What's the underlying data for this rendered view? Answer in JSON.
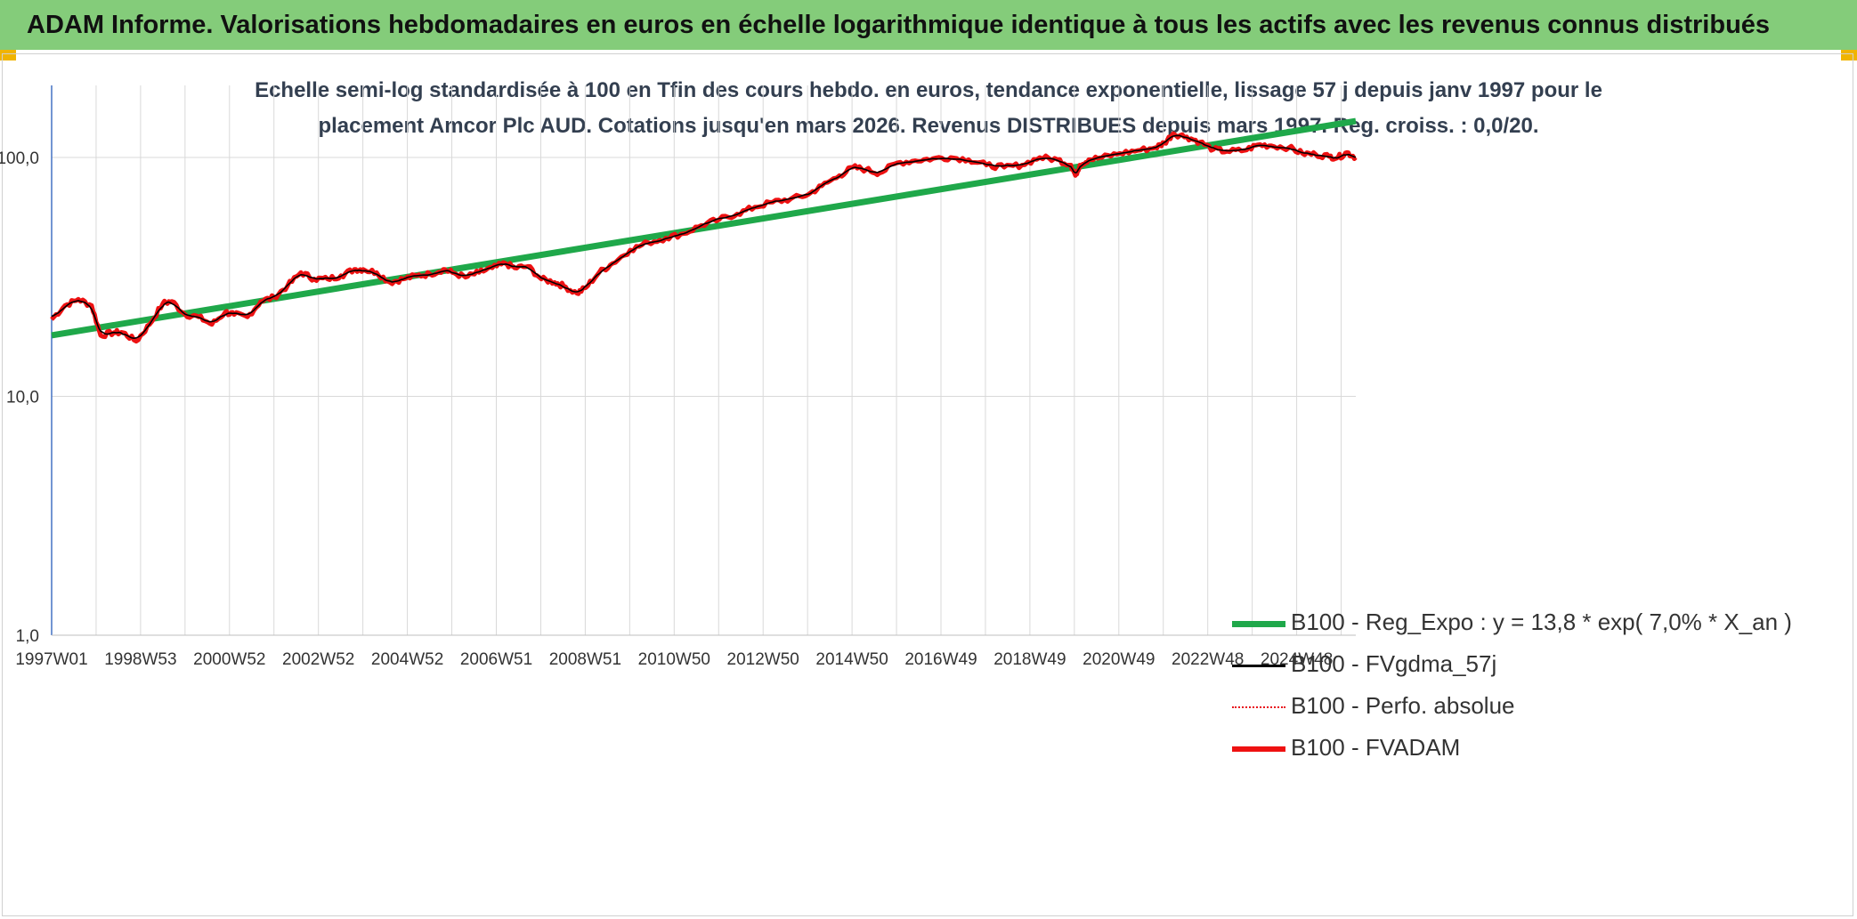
{
  "header": {
    "title": "ADAM Informe. Valorisations hebdomadaires en euros en échelle logarithmique identique à tous les actifs avec les revenus connus distribués"
  },
  "colors": {
    "banner": "#84cc7a",
    "corner_accent": "#f0b400",
    "trend": "#1fa84a",
    "fvgdma": "#000000",
    "perfo": "#e8141c",
    "fvadam": "#ee1111",
    "grid": "#d9d9d9",
    "axis": "#4472c4"
  },
  "chart_data": {
    "type": "line",
    "title": [
      "Echelle semi-log standardisée à 100 en Tfin des cours hebdo. en euros, tendance exponentielle, lissage 57 j depuis janv 1997 pour le",
      "placement Amcor Plc AUD. Cotations jusqu'en mars 2026. Revenus DISTRIBUES depuis mars 1997. Reg. croiss. : 0,0/20."
    ],
    "y_scale": "log",
    "ylim": [
      1,
      200
    ],
    "y_ticks": [
      {
        "value": 100,
        "label": "100,0"
      },
      {
        "value": 10,
        "label": "10,0"
      },
      {
        "value": 1,
        "label": "1,0"
      }
    ],
    "xlim": [
      1997.0,
      2026.3
    ],
    "x_ticks": [
      "1997W01",
      "1998W53",
      "2000W52",
      "2002W52",
      "2004W52",
      "2006W51",
      "2008W51",
      "2010W50",
      "2012W50",
      "2014W50",
      "2016W49",
      "2018W49",
      "2020W49",
      "2022W48",
      "2024W48"
    ],
    "grid": true,
    "legend_position": "bottom-right",
    "series": [
      {
        "name": "B100 - Reg_Expo : y = 13,8 * exp( 7,0% *  X_an )",
        "style": "line-thick",
        "color": "#1fa84a",
        "x": [
          1997.0,
          2026.3
        ],
        "values": [
          18.0,
          142.0
        ]
      },
      {
        "name": "B100 - FVgdma_57j",
        "style": "line-thin",
        "color": "#000000",
        "smooth_of": "B100 - FVADAM"
      },
      {
        "name": "B100 - Perfo. absolue",
        "style": "dotted",
        "color": "#e8141c",
        "same_as": "B100 - FVADAM"
      },
      {
        "name": "B100 - FVADAM",
        "style": "line-thick",
        "color": "#ee1111",
        "x": [
          1997.0,
          1997.3,
          1997.6,
          1997.9,
          1998.1,
          1998.4,
          1998.6,
          1998.9,
          1999.2,
          1999.5,
          1999.7,
          2000.0,
          2000.3,
          2000.6,
          2000.9,
          2001.1,
          2001.4,
          2001.7,
          2002.0,
          2002.3,
          2002.6,
          2002.9,
          2003.2,
          2003.5,
          2003.8,
          2004.0,
          2004.3,
          2004.6,
          2004.9,
          2005.2,
          2005.5,
          2005.8,
          2006.0,
          2006.3,
          2006.6,
          2006.9,
          2007.2,
          2007.4,
          2007.7,
          2008.0,
          2008.3,
          2008.5,
          2008.8,
          2009.0,
          2009.3,
          2009.6,
          2010.0,
          2010.4,
          2010.8,
          2011.2,
          2011.6,
          2012.0,
          2012.4,
          2012.8,
          2013.2,
          2013.6,
          2014.0,
          2014.3,
          2014.7,
          2015.0,
          2015.3,
          2015.6,
          2016.0,
          2016.4,
          2016.8,
          2017.2,
          2017.6,
          2018.0,
          2018.4,
          2018.8,
          2019.2,
          2019.6,
          2019.9,
          2020.0,
          2020.1,
          2020.3,
          2020.6,
          2021.0,
          2021.4,
          2021.8,
          2022.0,
          2022.2,
          2022.5,
          2022.8,
          2023.1,
          2023.4,
          2023.8,
          2024.1,
          2024.4,
          2024.8,
          2025.1,
          2025.4,
          2025.7,
          2025.9,
          2026.1,
          2026.3
        ],
        "values": [
          21.0,
          24.0,
          25.5,
          24.0,
          18.0,
          18.5,
          18.5,
          17.0,
          20.0,
          24.5,
          25.0,
          22.0,
          21.5,
          20.0,
          22.5,
          22.0,
          21.5,
          25.0,
          26.0,
          29.0,
          33.0,
          31.0,
          31.0,
          32.0,
          34.0,
          34.0,
          33.0,
          30.0,
          31.0,
          32.0,
          32.5,
          34.0,
          33.0,
          31.5,
          33.0,
          34.5,
          36.0,
          34.5,
          35.0,
          31.0,
          30.0,
          29.0,
          27.0,
          28.5,
          33.0,
          36.0,
          41.0,
          44.0,
          46.0,
          48.0,
          52.0,
          55.0,
          58.0,
          62.0,
          65.0,
          67.0,
          70.0,
          76.0,
          84.0,
          91.0,
          89.0,
          86.0,
          95.0,
          97.0,
          99.0,
          100.0,
          98.0,
          93.0,
          91.0,
          93.0,
          100.0,
          98.0,
          93.0,
          84.0,
          93.0,
          98.0,
          100.0,
          104.0,
          107.0,
          110.0,
          115.0,
          126.0,
          122.0,
          116.0,
          108.0,
          106.0,
          107.0,
          113.0,
          112.0,
          110.0,
          104.0,
          103.0,
          101.0,
          100.0,
          105.0,
          100.0
        ]
      }
    ]
  }
}
